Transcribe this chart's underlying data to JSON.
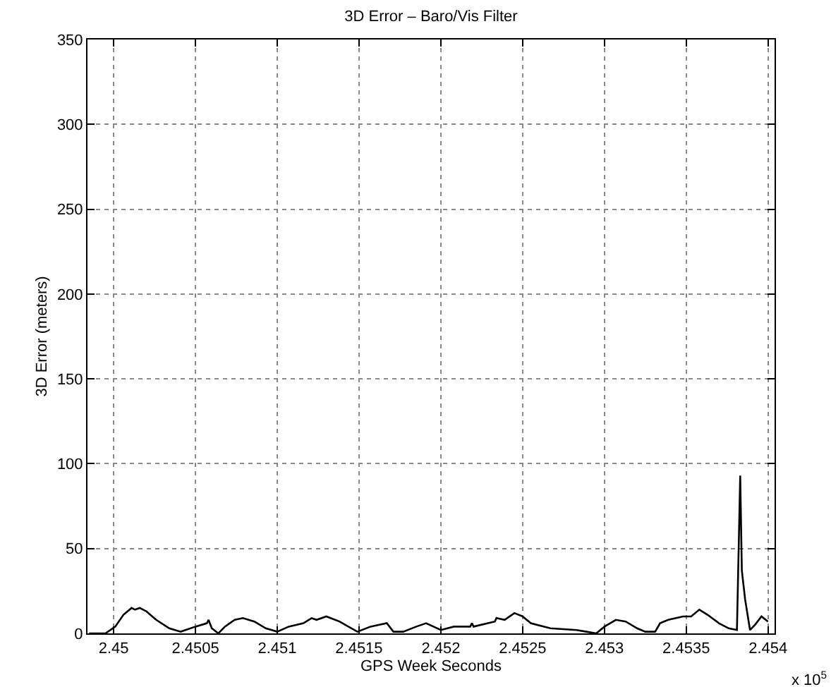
{
  "chart_data": {
    "type": "line",
    "title": "3D Error – Baro/Vis Filter",
    "xlabel": "GPS Week Seconds",
    "ylabel": "3D Error (meters)",
    "annotations": [
      "x 10$^{5}$"
    ],
    "x": [
      2.44985,
      2.44995,
      2.45001,
      2.45006,
      2.45011,
      2.45013,
      2.45016,
      2.4502,
      2.45026,
      2.45034,
      2.45041,
      2.4505,
      2.45057,
      2.45058,
      2.4506,
      2.45064,
      2.45068,
      2.45074,
      2.45079,
      2.45086,
      2.45093,
      2.451,
      2.45107,
      2.45116,
      2.45121,
      2.45124,
      2.4513,
      2.45138,
      2.45149,
      2.45157,
      2.45167,
      2.45171,
      2.45177,
      2.45185,
      2.45191,
      2.452,
      2.45208,
      2.45218,
      2.45219,
      2.4522,
      2.45233,
      2.45234,
      2.45239,
      2.45245,
      2.4525,
      2.45255,
      2.45267,
      2.45283,
      2.45289,
      2.45295,
      2.453,
      2.45307,
      2.45313,
      2.4532,
      2.45325,
      2.45331,
      2.45334,
      2.45339,
      2.45348,
      2.45353,
      2.45358,
      2.45363,
      2.4537,
      2.45376,
      2.45381,
      2.45383,
      2.45384,
      2.45386,
      2.45389,
      2.45392,
      2.45396,
      2.454
    ],
    "series": [
      {
        "color": "#000000",
        "values": [
          0,
          0,
          4,
          11,
          15,
          14,
          15,
          13,
          8,
          3,
          1,
          4,
          6,
          8,
          3,
          0,
          4,
          8,
          9,
          7,
          3,
          1,
          4,
          6,
          9,
          8,
          10,
          7,
          1,
          4,
          6,
          1,
          1,
          4,
          6,
          2,
          4,
          4,
          6,
          4,
          7,
          9,
          8,
          12,
          10,
          6,
          3,
          2,
          1,
          0,
          4,
          8,
          7,
          3,
          1,
          1,
          6,
          8,
          10,
          10,
          14,
          11,
          6,
          3,
          2,
          93,
          37,
          20,
          2,
          5,
          10,
          7
        ]
      }
    ],
    "xlim": [
      2.44984,
      2.45404
    ],
    "ylim": [
      0,
      350
    ],
    "xticks": [
      2.45,
      2.4505,
      2.451,
      2.4515,
      2.452,
      2.4525,
      2.453,
      2.4535,
      2.454
    ],
    "yticks": [
      0,
      50,
      100,
      150,
      200,
      250,
      300,
      350
    ],
    "grid": true,
    "legend": false,
    "marker": "none",
    "line_style": "solid"
  }
}
